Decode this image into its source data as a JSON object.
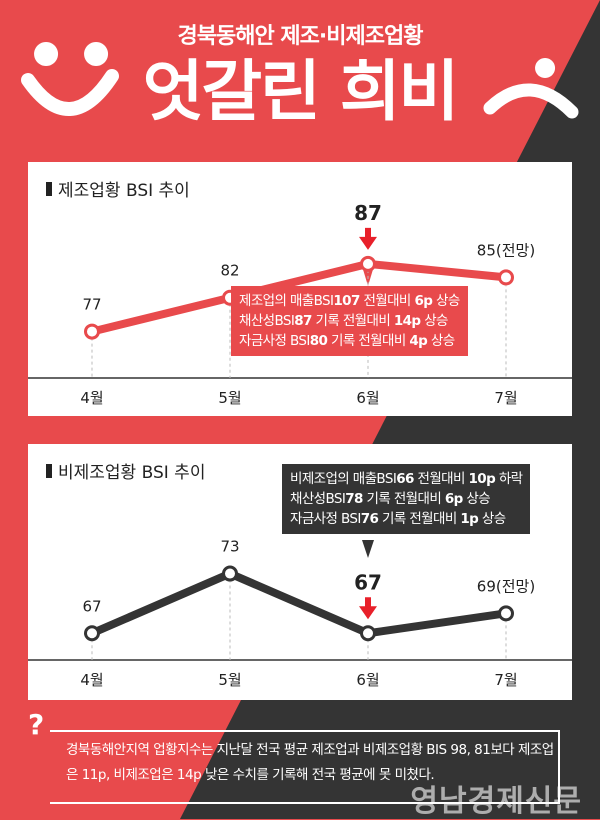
{
  "header": {
    "subtitle": "경북동해안 제조·비제조업황",
    "title": "엇갈린 희비"
  },
  "colors": {
    "accent": "#e84a4c",
    "dark": "#343434",
    "grid": "#bbbbbb"
  },
  "chart_data": [
    {
      "type": "line",
      "title": "제조업황 BSI 추이",
      "categories": [
        "4월",
        "5월",
        "6월",
        "7월"
      ],
      "values": [
        77,
        82,
        87,
        85
      ],
      "point_labels": [
        "77",
        "82",
        "87",
        "85(전망)"
      ],
      "highlight_index": 2,
      "line_color": "#e84a4c",
      "ylim": [
        70,
        92
      ],
      "callout": [
        {
          "label": "제조업의 매출BSI",
          "value": "107",
          "change": "전월대비",
          "delta": "6p",
          "direction": "상승"
        },
        {
          "label": "채산성BSI",
          "value": "87",
          "change": "기록 전월대비",
          "delta": "14p",
          "direction": "상승"
        },
        {
          "label": "자금사정 BSI",
          "value": "80",
          "change": "기록 전월대비",
          "delta": "4p",
          "direction": "상승"
        }
      ]
    },
    {
      "type": "line",
      "title": "비제조업황 BSI 추이",
      "categories": [
        "4월",
        "5월",
        "6월",
        "7월"
      ],
      "values": [
        67,
        73,
        67,
        69
      ],
      "point_labels": [
        "67",
        "73",
        "67",
        "69(전망)"
      ],
      "highlight_index": 2,
      "line_color": "#343434",
      "ylim": [
        62,
        82
      ],
      "callout": [
        {
          "label": "비제조업의 매출BSI",
          "value": "66",
          "change": "전월대비",
          "delta": "10p",
          "direction": "하락"
        },
        {
          "label": "채산성BSI",
          "value": "78",
          "change": "기록 전월대비",
          "delta": "6p",
          "direction": "상승"
        },
        {
          "label": "자금사정 BSI",
          "value": "76",
          "change": "기록 전월대비",
          "delta": "1p",
          "direction": "상승"
        }
      ]
    }
  ],
  "note": {
    "mark": "?",
    "text": "경북동해안지역 업황지수는 지난달 전국 평균 제조업과 비제조업황 BIS 98, 81보다 제조업은 11p, 비제조업은 14p 낮은 수치를 기록해 전국 평균에 못 미쳤다."
  },
  "watermark": "영남경제신문"
}
